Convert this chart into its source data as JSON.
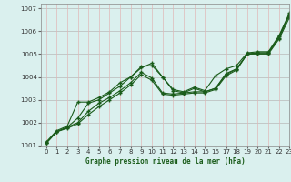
{
  "xlabel": "Graphe pression niveau de la mer (hPa)",
  "xlim": [
    -0.5,
    23
  ],
  "ylim": [
    1001.0,
    1007.2
  ],
  "yticks": [
    1001,
    1002,
    1003,
    1004,
    1005,
    1006,
    1007
  ],
  "xticks": [
    0,
    1,
    2,
    3,
    4,
    5,
    6,
    7,
    8,
    9,
    10,
    11,
    12,
    13,
    14,
    15,
    16,
    17,
    18,
    19,
    20,
    21,
    22,
    23
  ],
  "bg_color": "#daf0ee",
  "grid_color_h": "#b8b8b8",
  "grid_color_v": "#e0b8b8",
  "line_color": "#1a5c1a",
  "series": [
    [
      1001.1,
      1001.6,
      1001.8,
      1002.2,
      1002.85,
      1003.0,
      1003.3,
      1003.6,
      1004.0,
      1004.4,
      1004.6,
      1004.0,
      1003.4,
      1003.3,
      1003.5,
      1003.35,
      1003.5,
      1004.15,
      1004.35,
      1005.0,
      1005.05,
      1005.05,
      1005.75,
      1006.75
    ],
    [
      1001.15,
      1001.65,
      1001.85,
      1002.9,
      1002.9,
      1003.1,
      1003.35,
      1003.75,
      1004.0,
      1004.45,
      1004.5,
      1004.0,
      1003.45,
      1003.35,
      1003.55,
      1003.4,
      1004.05,
      1004.35,
      1004.5,
      1005.05,
      1005.1,
      1005.1,
      1005.8,
      1006.8
    ],
    [
      1001.1,
      1001.6,
      1001.8,
      1002.0,
      1002.5,
      1002.85,
      1003.1,
      1003.4,
      1003.75,
      1004.2,
      1003.95,
      1003.3,
      1003.25,
      1003.3,
      1003.35,
      1003.35,
      1003.5,
      1004.1,
      1004.35,
      1005.0,
      1005.05,
      1005.05,
      1005.7,
      1006.7
    ],
    [
      1001.1,
      1001.6,
      1001.75,
      1001.95,
      1002.35,
      1002.7,
      1003.0,
      1003.3,
      1003.65,
      1004.1,
      1003.85,
      1003.25,
      1003.2,
      1003.25,
      1003.3,
      1003.3,
      1003.45,
      1004.05,
      1004.3,
      1005.0,
      1005.0,
      1005.0,
      1005.65,
      1006.6
    ]
  ]
}
